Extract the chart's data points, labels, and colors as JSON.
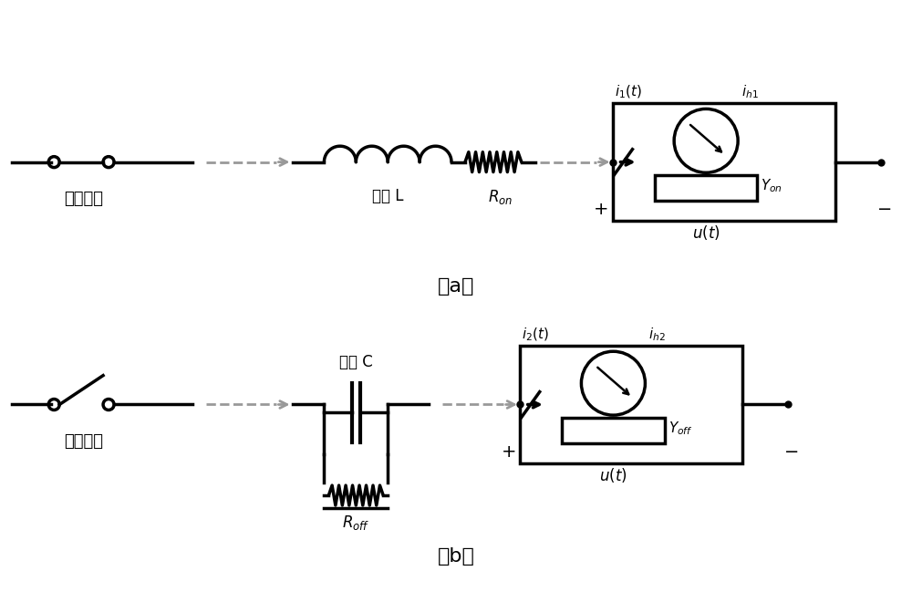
{
  "bg_color": "#ffffff",
  "line_color": "#000000",
  "gray_color": "#999999",
  "lw_main": 2.5,
  "label_a": "（a）",
  "label_b": "（b）",
  "text_on_switch": "导通开关",
  "text_off_switch": "关断开关",
  "text_inductor": "电感 L",
  "text_ron": "$R_{on}$",
  "text_roff": "$R_{off}$",
  "text_capacitor": "电容 C",
  "text_i1t": "$i_1(t)$",
  "text_i2t": "$i_2(t)$",
  "text_ih1": "$i_{h1}$",
  "text_ih2": "$i_{h2}$",
  "text_yon": "$Y_{on}$",
  "text_yoff": "$Y_{off}$",
  "text_ut": "$u(t)$",
  "text_plus": "+",
  "text_minus": "−"
}
